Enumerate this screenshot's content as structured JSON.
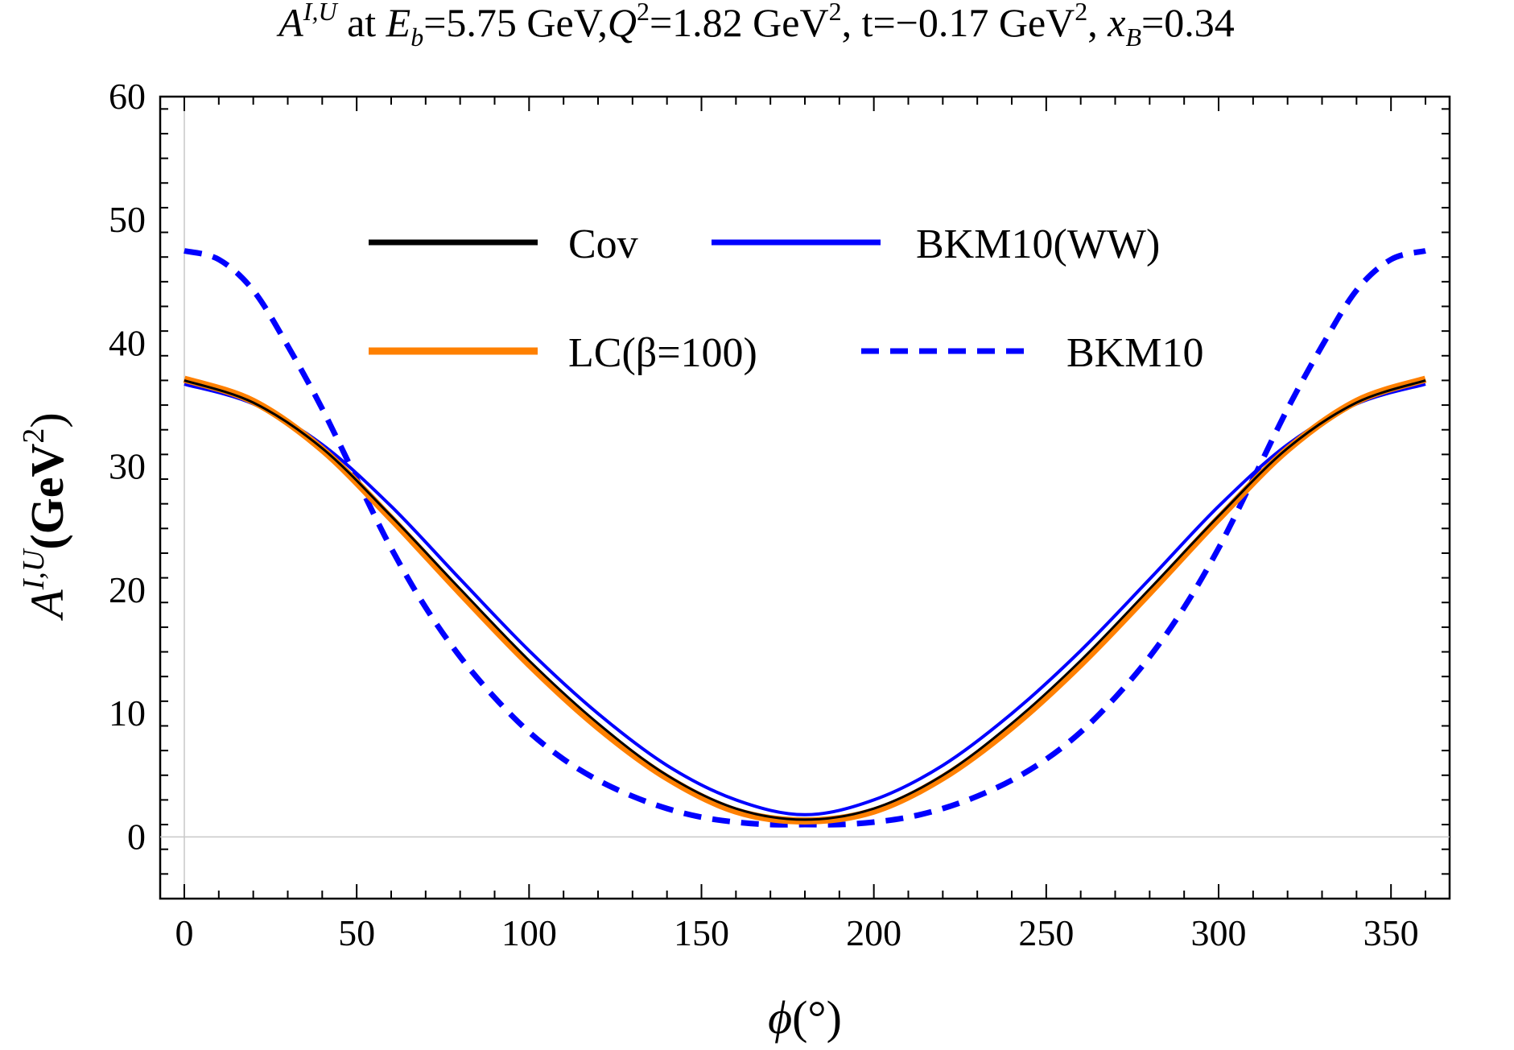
{
  "chart_data": {
    "type": "line",
    "title": {
      "a_sym": "A",
      "a_sup": "I,U",
      "s1": " at ",
      "e_sym": "E",
      "e_sub": "b",
      "s2": "=5.75 GeV,",
      "q_sym": "Q",
      "q_sup": "2",
      "s3": "=1.82 GeV",
      "s3_sup": "2",
      "s4": ", t=−0.17 GeV",
      "s4_sup": "2",
      "s5": ", ",
      "x_sym": "x",
      "x_sub": "B",
      "s6": "=0.34"
    },
    "xlabel": {
      "sym": "ϕ",
      "rest": "(°)"
    },
    "ylabel": {
      "sym": "A",
      "sup": "I,U",
      "unit": "(GeV",
      "unit_sup": "2",
      "close": ")"
    },
    "xlim": [
      -7,
      367
    ],
    "ylim": [
      -5,
      60
    ],
    "xticks": [
      0,
      50,
      100,
      150,
      200,
      250,
      300,
      350
    ],
    "yticks": [
      0,
      10,
      20,
      30,
      40,
      50,
      60
    ],
    "grid": false,
    "legend_position": "top-center",
    "series": [
      {
        "name": "Cov",
        "color": "#000000",
        "style": "solid",
        "x": [
          0,
          20,
          40,
          60,
          80,
          100,
          120,
          140,
          160,
          180,
          200,
          220,
          240,
          260,
          280,
          300,
          320,
          340,
          360
        ],
        "y": [
          37.0,
          35.2,
          31.5,
          26.0,
          20.1,
          14.3,
          9.2,
          5.0,
          2.3,
          1.4,
          2.3,
          5.0,
          9.2,
          14.3,
          20.1,
          26.0,
          31.5,
          35.2,
          37.0
        ]
      },
      {
        "name": "BKM10(WW)",
        "color": "#0000ff",
        "style": "solid",
        "x": [
          0,
          20,
          40,
          60,
          80,
          100,
          120,
          140,
          160,
          180,
          200,
          220,
          240,
          260,
          280,
          300,
          320,
          340,
          360
        ],
        "y": [
          36.7,
          35.1,
          31.8,
          26.8,
          20.9,
          15.1,
          10.0,
          5.8,
          3.0,
          1.8,
          3.0,
          5.8,
          10.0,
          15.1,
          20.9,
          26.8,
          31.8,
          35.1,
          36.7
        ]
      },
      {
        "name": "LC(β=100)",
        "color": "#ff8000",
        "style": "solid",
        "x": [
          0,
          20,
          40,
          60,
          80,
          100,
          120,
          140,
          160,
          180,
          200,
          220,
          240,
          260,
          280,
          300,
          320,
          340,
          360
        ],
        "y": [
          37.1,
          35.3,
          31.4,
          25.8,
          19.8,
          14.0,
          8.9,
          4.8,
          2.1,
          1.3,
          2.1,
          4.8,
          8.9,
          14.0,
          19.8,
          25.8,
          31.4,
          35.3,
          37.1
        ]
      },
      {
        "name": "BKM10",
        "color": "#0000ff",
        "style": "dashed",
        "x": [
          0,
          10,
          20,
          30,
          40,
          50,
          60,
          70,
          80,
          90,
          100,
          110,
          120,
          130,
          140,
          150,
          160,
          170,
          180,
          190,
          200,
          210,
          220,
          230,
          240,
          250,
          260,
          270,
          280,
          290,
          300,
          310,
          320,
          330,
          340,
          350,
          360
        ],
        "y": [
          47.5,
          46.8,
          44.3,
          39.8,
          34.7,
          29.0,
          23.4,
          18.6,
          14.6,
          11.3,
          8.5,
          6.3,
          4.6,
          3.3,
          2.3,
          1.6,
          1.2,
          1.0,
          1.0,
          1.0,
          1.2,
          1.6,
          2.3,
          3.3,
          4.6,
          6.3,
          8.5,
          11.3,
          14.6,
          18.6,
          23.4,
          29.0,
          34.7,
          39.8,
          44.3,
          46.8,
          47.5
        ]
      }
    ]
  }
}
